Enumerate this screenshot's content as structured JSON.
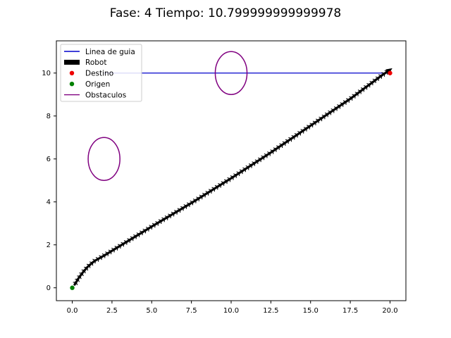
{
  "chart_data": {
    "type": "line",
    "title": "Fase: 4 Tiempo: 10.799999999999978",
    "xlabel": "",
    "ylabel": "",
    "xlim": [
      -1.0,
      21.0
    ],
    "ylim": [
      -0.6,
      11.5
    ],
    "x_ticks": [
      0.0,
      2.5,
      5.0,
      7.5,
      10.0,
      12.5,
      15.0,
      17.5,
      20.0
    ],
    "x_tick_labels": [
      "0.0",
      "2.5",
      "5.0",
      "7.5",
      "10.0",
      "12.5",
      "15.0",
      "17.5",
      "20.0"
    ],
    "y_ticks": [
      0,
      2,
      4,
      6,
      8,
      10
    ],
    "y_tick_labels": [
      "0",
      "2",
      "4",
      "6",
      "8",
      "10"
    ],
    "grid": false,
    "legend_position": "top-left",
    "legend": [
      {
        "label": "Linea de guia",
        "kind": "line",
        "color": "#0000cc"
      },
      {
        "label": "Robot",
        "kind": "thick-line",
        "color": "#000000"
      },
      {
        "label": "Destino",
        "kind": "dot",
        "color": "#ee0000"
      },
      {
        "label": "Origen",
        "kind": "dot",
        "color": "#008000"
      },
      {
        "label": "Obstaculos",
        "kind": "line",
        "color": "#800080"
      }
    ],
    "series": [
      {
        "name": "Linea de guia",
        "color": "#0000cc",
        "points": [
          [
            2.0,
            10.0
          ],
          [
            20.0,
            10.0
          ]
        ]
      },
      {
        "name": "Robot",
        "color": "#000000",
        "points": [
          [
            0.15,
            0.15
          ],
          [
            0.4,
            0.45
          ],
          [
            0.7,
            0.75
          ],
          [
            1.0,
            1.0
          ],
          [
            1.4,
            1.25
          ],
          [
            2.0,
            1.5
          ],
          [
            3.0,
            1.95
          ],
          [
            5.0,
            2.85
          ],
          [
            7.5,
            3.95
          ],
          [
            10.0,
            5.1
          ],
          [
            12.5,
            6.3
          ],
          [
            15.0,
            7.55
          ],
          [
            17.5,
            8.8
          ],
          [
            19.5,
            9.9
          ],
          [
            20.0,
            10.15
          ]
        ]
      },
      {
        "name": "Obstaculos",
        "color": "#800080",
        "ellipses": [
          {
            "cx": 2.0,
            "cy": 6.0,
            "rx": 1.0,
            "ry": 1.0
          },
          {
            "cx": 10.0,
            "cy": 10.0,
            "rx": 1.0,
            "ry": 1.0
          }
        ]
      }
    ],
    "points": [
      {
        "name": "Destino",
        "x": 20.0,
        "y": 10.0,
        "color": "#ee0000"
      },
      {
        "name": "Origen",
        "x": 0.0,
        "y": 0.0,
        "color": "#008000"
      }
    ]
  }
}
